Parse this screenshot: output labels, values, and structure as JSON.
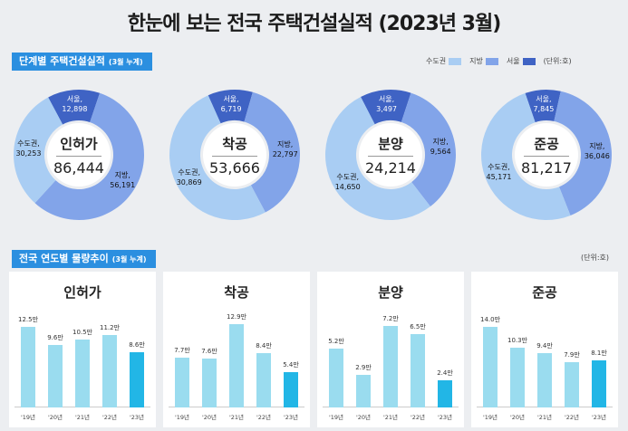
{
  "title": "한눈에 보는 전국 주택건설실적 (2023년 3월)",
  "section1": {
    "label": "단계별 주택건설실적",
    "sub": "(3월 누계)"
  },
  "section2": {
    "label": "전국 연도별 물량추이",
    "sub": "(3월 누계)"
  },
  "legend": [
    {
      "name": "수도권",
      "color": "#a9cdf3"
    },
    {
      "name": "지방",
      "color": "#82a4e9"
    },
    {
      "name": "서울",
      "color": "#3f63c4"
    }
  ],
  "unit1": "(단위:호)",
  "unit2": "(단위:호)",
  "chart_data": [
    {
      "type": "pie",
      "title": "인허가",
      "total": "86,444",
      "slices": [
        {
          "name": "서울",
          "value": 12898,
          "label": "서울,",
          "value_label": "12,898"
        },
        {
          "name": "수도권",
          "value": 30253,
          "label": "수도권,",
          "value_label": "30,253"
        },
        {
          "name": "지방",
          "value": 56191,
          "label": "지방,",
          "value_label": "56,191"
        }
      ]
    },
    {
      "type": "pie",
      "title": "착공",
      "total": "53,666",
      "slices": [
        {
          "name": "서울",
          "value": 6719,
          "label": "서울,",
          "value_label": "6,719"
        },
        {
          "name": "수도권",
          "value": 30869,
          "label": "수도권,",
          "value_label": "30,869"
        },
        {
          "name": "지방",
          "value": 22797,
          "label": "지방,",
          "value_label": "22,797"
        }
      ]
    },
    {
      "type": "pie",
      "title": "분양",
      "total": "24,214",
      "slices": [
        {
          "name": "서울",
          "value": 3497,
          "label": "서울,",
          "value_label": "3,497"
        },
        {
          "name": "수도권",
          "value": 14650,
          "label": "수도권,",
          "value_label": "14,650"
        },
        {
          "name": "지방",
          "value": 9564,
          "label": "지방,",
          "value_label": "9,564"
        }
      ]
    },
    {
      "type": "pie",
      "title": "준공",
      "total": "81,217",
      "slices": [
        {
          "name": "서울",
          "value": 7845,
          "label": "서울,",
          "value_label": "7,845"
        },
        {
          "name": "수도권",
          "value": 45171,
          "label": "수도권,",
          "value_label": "45,171"
        },
        {
          "name": "지방",
          "value": 36046,
          "label": "지방,",
          "value_label": "36,046"
        }
      ]
    },
    {
      "type": "bar",
      "title": "인허가",
      "categories": [
        "'19년",
        "'20년",
        "'21년",
        "'22년",
        "'23년"
      ],
      "values": [
        12.5,
        9.6,
        10.5,
        11.2,
        8.6
      ],
      "value_labels": [
        "12.5만",
        "9.6만",
        "10.5만",
        "11.2만",
        "8.6만"
      ],
      "ylim": [
        0,
        14
      ]
    },
    {
      "type": "bar",
      "title": "착공",
      "categories": [
        "'19년",
        "'20년",
        "'21년",
        "'22년",
        "'23년"
      ],
      "values": [
        7.7,
        7.6,
        12.9,
        8.4,
        5.4
      ],
      "value_labels": [
        "7.7만",
        "7.6만",
        "12.9만",
        "8.4만",
        "5.4만"
      ],
      "ylim": [
        0,
        14
      ]
    },
    {
      "type": "bar",
      "title": "분양",
      "categories": [
        "'19년",
        "'20년",
        "'21년",
        "'22년",
        "'23년"
      ],
      "values": [
        5.2,
        2.9,
        7.2,
        6.5,
        2.4
      ],
      "value_labels": [
        "5.2만",
        "2.9만",
        "7.2만",
        "6.5만",
        "2.4만"
      ],
      "ylim": [
        0,
        8
      ]
    },
    {
      "type": "bar",
      "title": "준공",
      "categories": [
        "'19년",
        "'20년",
        "'21년",
        "'22년",
        "'23년"
      ],
      "values": [
        14.0,
        10.3,
        9.4,
        7.9,
        8.1
      ],
      "value_labels": [
        "14.0만",
        "10.3만",
        "9.4만",
        "7.9만",
        "8.1만"
      ],
      "ylim": [
        0,
        15.7
      ]
    }
  ],
  "colors": {
    "seoul": "#3f63c4",
    "metro": "#a9cdf3",
    "region": "#82a4e9",
    "bar_past": "#9adcef",
    "bar_current": "#22b6e6"
  }
}
